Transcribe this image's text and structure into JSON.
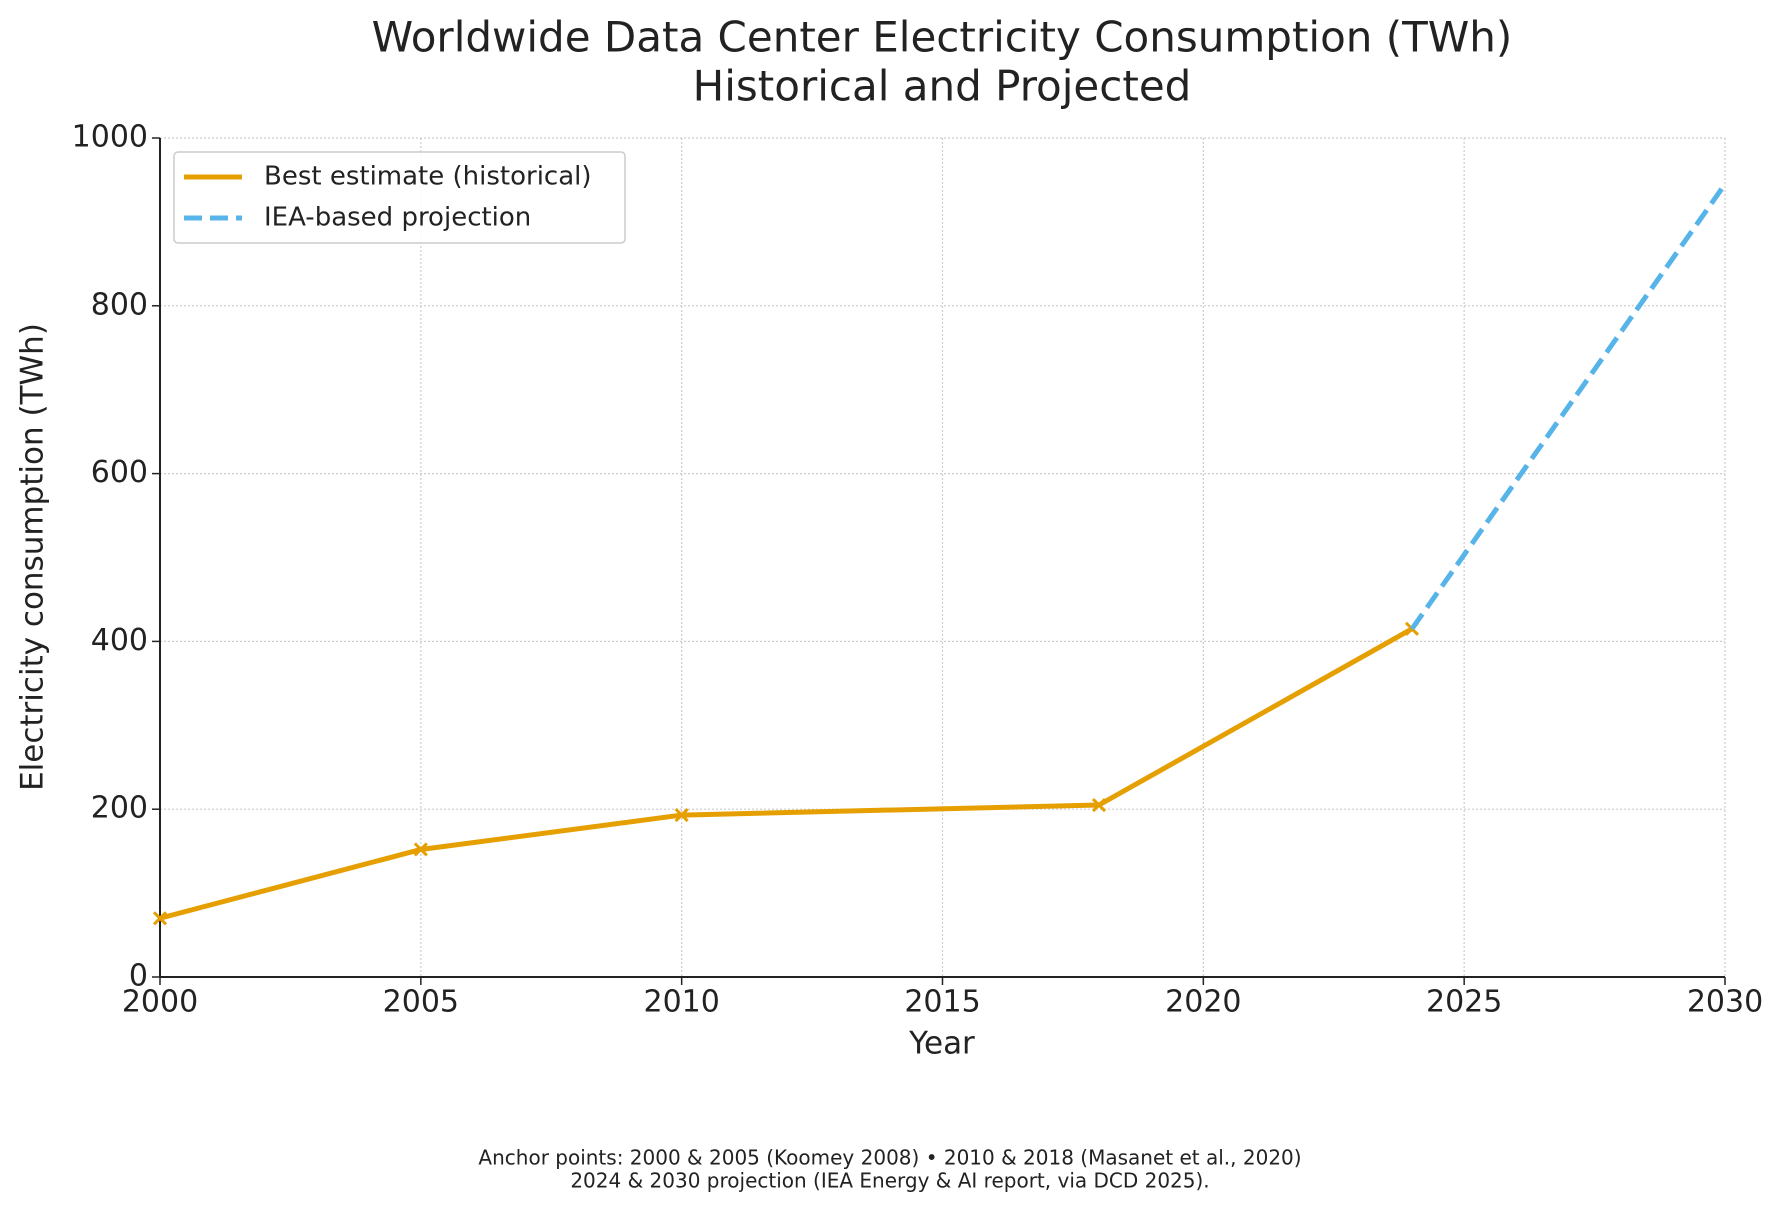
{
  "chart_data": {
    "type": "line",
    "title": "Worldwide Data Center Electricity Consumption (TWh)",
    "subtitle": "Historical and Projected",
    "x_label": "Year",
    "y_label": "Electricity consumption (TWh)",
    "series": [
      {
        "name": "Best estimate (historical)",
        "color": "#e69f00",
        "linestyle": "solid",
        "marker": "x",
        "x": [
          2000,
          2005,
          2010,
          2018,
          2024
        ],
        "values": [
          70,
          152,
          193,
          205,
          415
        ]
      },
      {
        "name": "IEA-based projection",
        "color": "#56b4e9",
        "linestyle": "dashed",
        "x": [
          2024,
          2030
        ],
        "values": [
          415,
          945
        ]
      }
    ],
    "xlim": [
      2000,
      2030
    ],
    "xticks": [
      2000,
      2005,
      2010,
      2015,
      2020,
      2025,
      2030
    ],
    "ylim": [
      0,
      1000
    ],
    "yticks": [
      0,
      200,
      400,
      600,
      800,
      1000
    ],
    "grid": true,
    "legend": "upper left",
    "footnote": [
      "Anchor points: 2000 & 2005 (Koomey 2008) • 2010 & 2018 (Masanet et al., 2020)",
      "2024 & 2030 projection (IEA Energy & AI report, via DCD 2025)."
    ]
  }
}
